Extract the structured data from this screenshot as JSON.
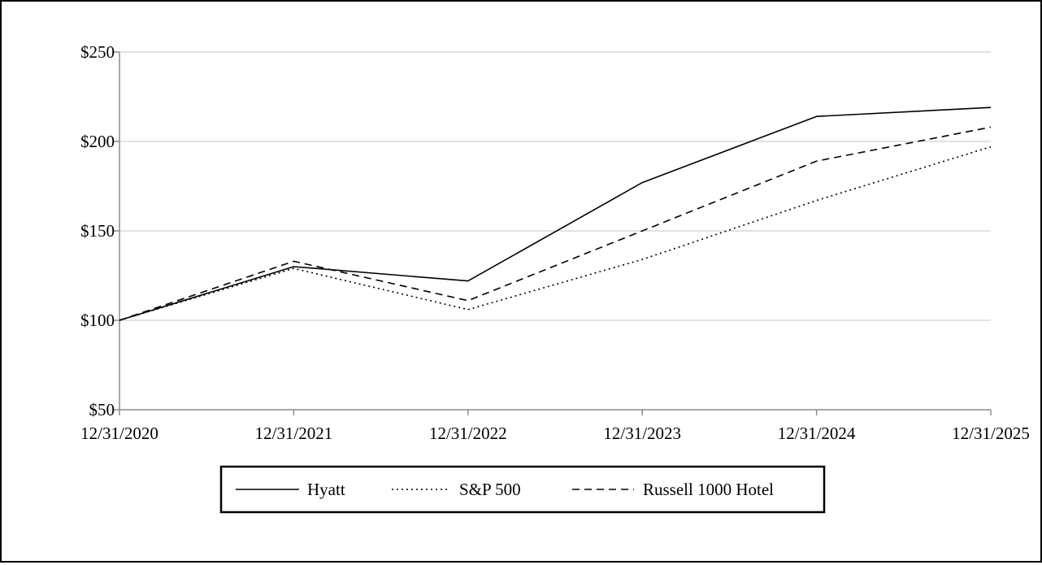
{
  "chart_data": {
    "type": "line",
    "title": "",
    "xlabel": "",
    "ylabel": "",
    "categories": [
      "12/31/2020",
      "12/31/2021",
      "12/31/2022",
      "12/31/2023",
      "12/31/2024",
      "12/31/2025"
    ],
    "y_ticks": [
      "$50",
      "$100",
      "$150",
      "$200",
      "$250"
    ],
    "y_tick_values": [
      50,
      100,
      150,
      200,
      250
    ],
    "ylim": [
      50,
      250
    ],
    "grid": "horizontal",
    "legend_placement": "bottom-center",
    "series": [
      {
        "name": "Hyatt",
        "values": [
          100,
          130,
          122,
          177,
          214,
          219
        ],
        "style": "solid",
        "color": "#000000"
      },
      {
        "name": "S&P 500",
        "values": [
          100,
          129,
          106,
          134,
          167,
          197
        ],
        "style": "dotted",
        "color": "#000000"
      },
      {
        "name": "Russell 1000 Hotel",
        "values": [
          100,
          133,
          111,
          150,
          189,
          208
        ],
        "style": "dashed",
        "color": "#000000"
      }
    ]
  }
}
